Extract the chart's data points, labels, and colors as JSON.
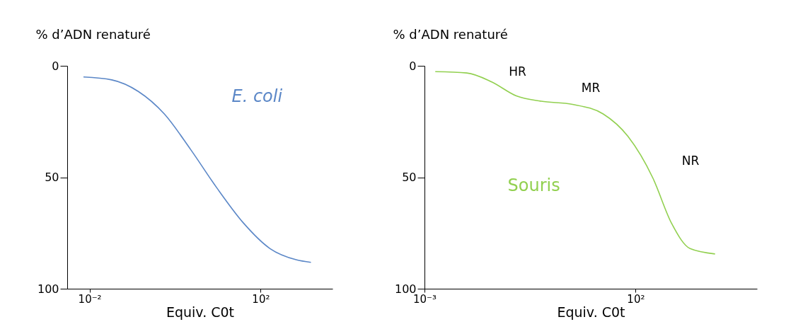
{
  "chart_data": [
    {
      "type": "line",
      "xlabel": "Equiv. C0t",
      "ylabel": "% d’ADN renaturé",
      "log": "x",
      "grid": false,
      "legend": false,
      "xlim": [
        0.003,
        4800
      ],
      "xticks": [
        {
          "value": 0.01,
          "label": "10⁻²"
        },
        {
          "value": 100,
          "label": "10²"
        }
      ],
      "ylim": [
        100,
        0
      ],
      "yticks": [
        0,
        50,
        100
      ],
      "series": [
        {
          "name": "E. coli",
          "color": "#5b87c7",
          "x": [
            0.0072,
            0.033,
            0.138,
            0.56,
            2.3,
            9.5,
            40,
            166,
            676,
            1500
          ],
          "values": [
            5,
            6.3,
            11.5,
            21.6,
            37.5,
            54.8,
            70.6,
            82,
            87,
            88.2
          ]
        }
      ]
    },
    {
      "type": "line",
      "xlabel": "Equiv. C0t",
      "ylabel": "% d’ADN renaturé",
      "log": "x",
      "grid": false,
      "legend": false,
      "xlim": [
        0.001,
        75000
      ],
      "xticks": [
        {
          "value": 0.001,
          "label": "10⁻³"
        },
        {
          "value": 100,
          "label": "10²"
        }
      ],
      "ylim": [
        100,
        0
      ],
      "yticks": [
        0,
        50,
        100
      ],
      "series": [
        {
          "name": "Souris",
          "color": "#92d050",
          "x": [
            0.0018,
            0.01,
            0.039,
            0.15,
            0.58,
            3.2,
            17,
            66,
            257,
            708,
            1950,
            7600
          ],
          "values": [
            2.6,
            3.2,
            7.2,
            13.5,
            15.9,
            17.3,
            21.6,
            31.7,
            50.4,
            70.6,
            82,
            84.4
          ]
        }
      ],
      "annotations": [
        "HR",
        "MR",
        "NR"
      ]
    }
  ]
}
